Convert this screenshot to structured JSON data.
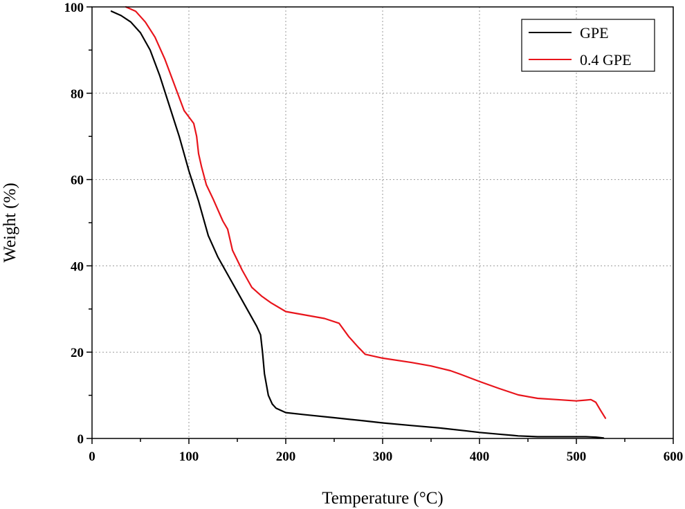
{
  "chart_data": {
    "type": "line",
    "title": "",
    "xlabel": "Temperature (°C)",
    "ylabel": "Weight (%)",
    "xlim": [
      0,
      600
    ],
    "ylim": [
      0,
      100
    ],
    "xticks": [
      0,
      100,
      200,
      300,
      400,
      500,
      600
    ],
    "xtick_labels": [
      "0",
      "100",
      "200",
      "300",
      "400",
      "500",
      "600"
    ],
    "yticks": [
      0,
      20,
      40,
      60,
      80,
      100
    ],
    "ytick_labels": [
      "0",
      "20",
      "40",
      "60",
      "80",
      "100"
    ],
    "grid": true,
    "legend_position": "top-right",
    "series": [
      {
        "name": "GPE",
        "color": "#000000",
        "x": [
          20,
          30,
          40,
          50,
          60,
          70,
          80,
          90,
          100,
          110,
          115,
          120,
          130,
          140,
          150,
          160,
          170,
          174,
          176,
          178,
          182,
          186,
          190,
          200,
          220,
          250,
          280,
          300,
          330,
          360,
          385,
          400,
          420,
          435,
          440,
          450,
          460,
          480,
          500,
          510,
          515,
          520,
          525,
          528
        ],
        "y": [
          99,
          98,
          96.5,
          94,
          90,
          84,
          77,
          70,
          62,
          55,
          51,
          47,
          42,
          38,
          34,
          30,
          26,
          24,
          20,
          15,
          10,
          8,
          7,
          6,
          5.5,
          4.8,
          4.1,
          3.6,
          3.0,
          2.4,
          1.8,
          1.4,
          1.0,
          0.7,
          0.6,
          0.5,
          0.4,
          0.4,
          0.4,
          0.4,
          0.35,
          0.3,
          0.2,
          0.1
        ]
      },
      {
        "name": "0.4 GPE",
        "color": "#e8141b",
        "x": [
          35,
          45,
          55,
          65,
          75,
          85,
          95,
          105,
          108,
          110,
          113,
          118,
          125,
          135,
          140,
          145,
          155,
          165,
          175,
          185,
          200,
          220,
          240,
          255,
          265,
          275,
          282,
          300,
          330,
          350,
          370,
          380,
          400,
          420,
          440,
          460,
          480,
          500,
          510,
          515,
          520,
          525,
          530
        ],
        "y": [
          100,
          99,
          96.5,
          93,
          88,
          82,
          76,
          73,
          70,
          66,
          63,
          58.8,
          55.5,
          50.4,
          48.5,
          43.6,
          39,
          35,
          33,
          31.4,
          29.4,
          28.6,
          27.8,
          26.7,
          23.6,
          21.1,
          19.5,
          18.6,
          17.6,
          16.8,
          15.7,
          14.9,
          13.2,
          11.6,
          10.1,
          9.3,
          9.0,
          8.7,
          8.9,
          9.0,
          8.4,
          6.5,
          4.7
        ]
      }
    ]
  }
}
